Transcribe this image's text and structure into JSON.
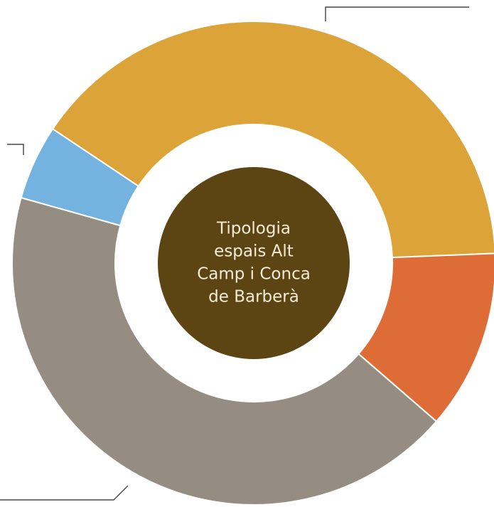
{
  "chart_data": {
    "type": "donut",
    "title_lines": [
      "Tipologia",
      "espais Alt",
      "Camp i Conca",
      "de Barberà"
    ],
    "values": [
      40,
      12,
      43,
      5
    ],
    "colors": [
      "#dba338",
      "#dd6c36",
      "#958c82",
      "#74b3df"
    ],
    "center_color": "#5c4512"
  }
}
